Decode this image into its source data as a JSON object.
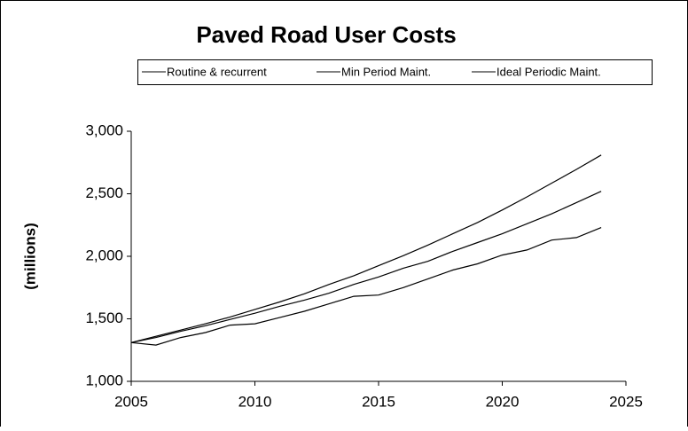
{
  "chart_data": {
    "type": "line",
    "title": "Paved Road User Costs",
    "ylabel": "(millions)",
    "x": [
      2005,
      2006,
      2007,
      2008,
      2009,
      2010,
      2011,
      2012,
      2013,
      2014,
      2015,
      2016,
      2017,
      2018,
      2019,
      2020,
      2021,
      2022,
      2023,
      2024
    ],
    "series": [
      {
        "name": "Routine & recurrent",
        "color": "#000000",
        "values": [
          1310,
          1360,
          1410,
          1460,
          1515,
          1575,
          1635,
          1700,
          1775,
          1845,
          1925,
          2005,
          2090,
          2180,
          2270,
          2370,
          2475,
          2585,
          2695,
          2810
        ]
      },
      {
        "name": "Min Period Maint.",
        "color": "#000000",
        "values": [
          1310,
          1350,
          1400,
          1445,
          1495,
          1545,
          1600,
          1650,
          1705,
          1775,
          1835,
          1905,
          1960,
          2040,
          2110,
          2180,
          2260,
          2340,
          2430,
          2520
        ]
      },
      {
        "name": "Ideal Periodic Maint.",
        "color": "#000000",
        "values": [
          1310,
          1290,
          1350,
          1390,
          1450,
          1460,
          1510,
          1560,
          1620,
          1680,
          1690,
          1750,
          1820,
          1890,
          1940,
          2010,
          2050,
          2130,
          2150,
          2230
        ]
      }
    ],
    "xlim": [
      2005,
      2025
    ],
    "xticks": [
      2005,
      2010,
      2015,
      2020,
      2025
    ],
    "ylim": [
      1000,
      3000
    ],
    "yticks": [
      {
        "value": 1000,
        "label": "1,000"
      },
      {
        "value": 1500,
        "label": "1,500"
      },
      {
        "value": 2000,
        "label": "2,000"
      },
      {
        "value": 2500,
        "label": "2,500"
      },
      {
        "value": 3000,
        "label": "3,000"
      }
    ],
    "legend": "top"
  }
}
